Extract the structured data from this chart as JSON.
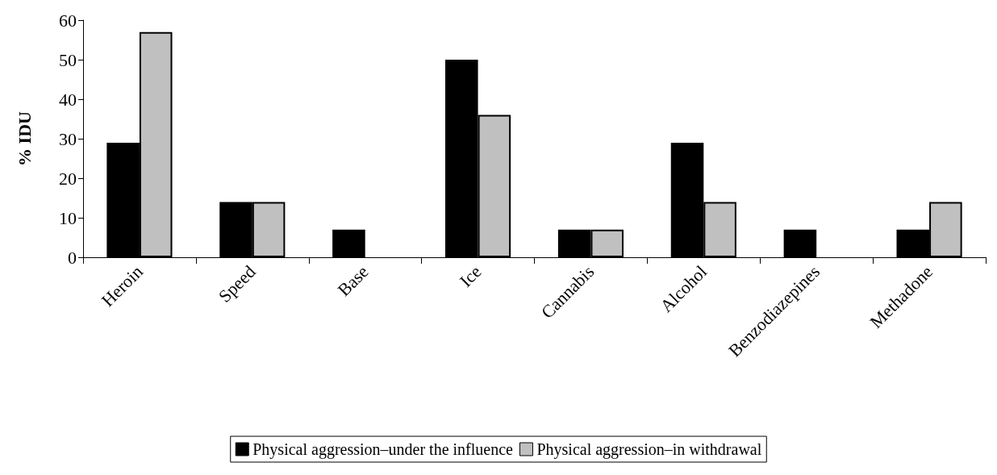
{
  "chart_data": {
    "type": "bar",
    "ylabel": "% IDU",
    "categories": [
      "Heroin",
      "Speed",
      "Base",
      "Ice",
      "Cannabis",
      "Alcohol",
      "Benzodiazepines",
      "Methadone"
    ],
    "series": [
      {
        "name": "Physical aggression–under the influence",
        "color": "#000000",
        "values": [
          29,
          14,
          7,
          50,
          7,
          29,
          7,
          7
        ]
      },
      {
        "name": "Physical aggression–in withdrawal",
        "color": "#c0c0c0",
        "values": [
          57,
          14,
          0,
          36,
          7,
          14,
          0,
          14
        ]
      }
    ],
    "ylim": [
      0,
      60
    ],
    "yticks": [
      0,
      10,
      20,
      30,
      40,
      50,
      60
    ],
    "grid": false,
    "legend": "bottom"
  }
}
